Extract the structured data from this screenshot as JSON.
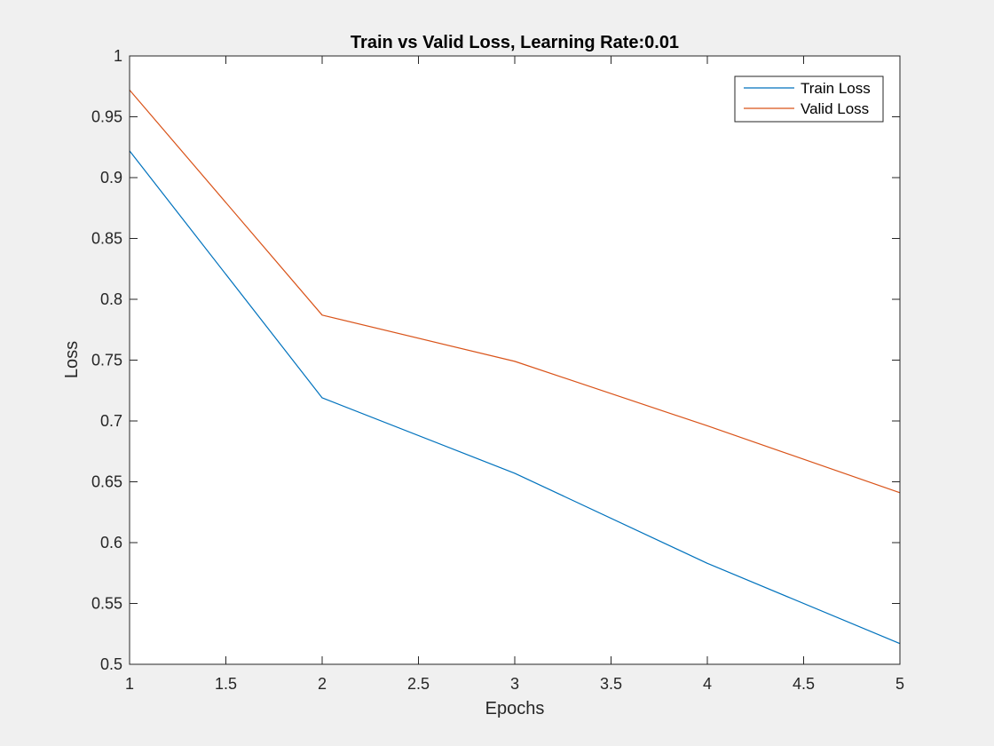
{
  "chart_data": {
    "type": "line",
    "title": "Train vs Valid Loss, Learning Rate:0.01",
    "xlabel": "Epochs",
    "ylabel": "Loss",
    "xlim": [
      1,
      5
    ],
    "ylim": [
      0.5,
      1
    ],
    "xticks": [
      "1",
      "1.5",
      "2",
      "2.5",
      "3",
      "3.5",
      "4",
      "4.5",
      "5"
    ],
    "yticks": [
      "0.5",
      "0.55",
      "0.6",
      "0.65",
      "0.7",
      "0.75",
      "0.8",
      "0.85",
      "0.9",
      "0.95",
      "1"
    ],
    "x": [
      1,
      2,
      3,
      4,
      5
    ],
    "grid": false,
    "legend_position": "top-right",
    "series": [
      {
        "name": "Train Loss",
        "color": "#0072bd",
        "values": [
          0.922,
          0.719,
          0.657,
          0.583,
          0.517
        ]
      },
      {
        "name": "Valid Loss",
        "color": "#d95319",
        "values": [
          0.972,
          0.787,
          0.749,
          0.696,
          0.641
        ]
      }
    ]
  }
}
